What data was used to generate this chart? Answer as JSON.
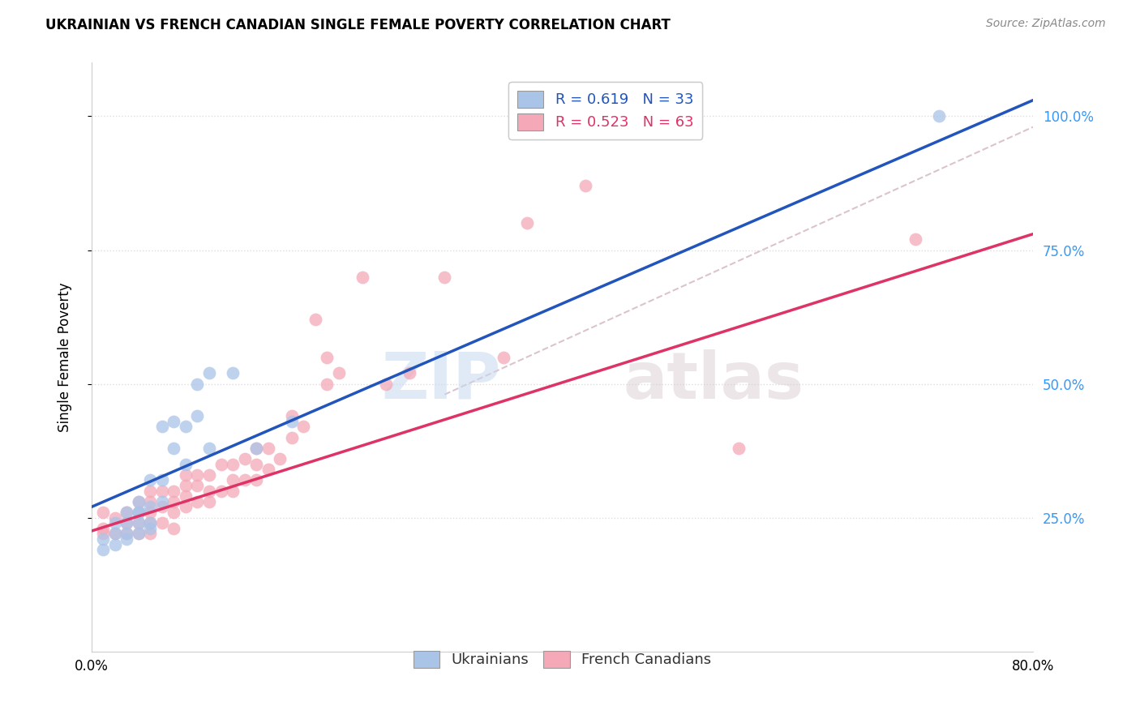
{
  "title": "UKRAINIAN VS FRENCH CANADIAN SINGLE FEMALE POVERTY CORRELATION CHART",
  "source": "Source: ZipAtlas.com",
  "ylabel": "Single Female Poverty",
  "xlim": [
    0.0,
    0.8
  ],
  "ylim": [
    0.0,
    1.1
  ],
  "xticks": [
    0.0,
    0.1,
    0.2,
    0.3,
    0.4,
    0.5,
    0.6,
    0.7,
    0.8
  ],
  "xticklabels": [
    "0.0%",
    "",
    "",
    "",
    "",
    "",
    "",
    "",
    "80.0%"
  ],
  "ytick_positions": [
    0.25,
    0.5,
    0.75,
    1.0
  ],
  "ytick_labels": [
    "25.0%",
    "50.0%",
    "75.0%",
    "100.0%"
  ],
  "watermark_zip": "ZIP",
  "watermark_atlas": "atlas",
  "blue_R": "0.619",
  "blue_N": "33",
  "pink_R": "0.523",
  "pink_N": "63",
  "blue_scatter_color": "#aac4e8",
  "pink_scatter_color": "#f4a8b8",
  "blue_line_color": "#2255bb",
  "pink_line_color": "#dd3366",
  "dash_line_color": "#ccaabb",
  "background_color": "#ffffff",
  "grid_color": "#dddddd",
  "legend_text_R_color": "#2255bb",
  "legend_text_N_color": "#dd3366",
  "ukr_x": [
    0.01,
    0.01,
    0.02,
    0.02,
    0.02,
    0.03,
    0.03,
    0.03,
    0.03,
    0.04,
    0.04,
    0.04,
    0.04,
    0.04,
    0.05,
    0.05,
    0.05,
    0.05,
    0.06,
    0.06,
    0.06,
    0.07,
    0.07,
    0.08,
    0.08,
    0.09,
    0.09,
    0.1,
    0.1,
    0.12,
    0.14,
    0.17,
    0.72
  ],
  "ukr_y": [
    0.19,
    0.21,
    0.2,
    0.22,
    0.24,
    0.21,
    0.22,
    0.24,
    0.26,
    0.22,
    0.24,
    0.26,
    0.26,
    0.28,
    0.23,
    0.24,
    0.27,
    0.32,
    0.28,
    0.32,
    0.42,
    0.38,
    0.43,
    0.35,
    0.42,
    0.44,
    0.5,
    0.38,
    0.52,
    0.52,
    0.38,
    0.43,
    1.0
  ],
  "fc_x": [
    0.01,
    0.01,
    0.01,
    0.02,
    0.02,
    0.03,
    0.03,
    0.03,
    0.04,
    0.04,
    0.04,
    0.04,
    0.05,
    0.05,
    0.05,
    0.05,
    0.05,
    0.06,
    0.06,
    0.06,
    0.07,
    0.07,
    0.07,
    0.07,
    0.08,
    0.08,
    0.08,
    0.08,
    0.09,
    0.09,
    0.09,
    0.1,
    0.1,
    0.1,
    0.11,
    0.11,
    0.12,
    0.12,
    0.12,
    0.13,
    0.13,
    0.14,
    0.14,
    0.14,
    0.15,
    0.15,
    0.16,
    0.17,
    0.17,
    0.18,
    0.19,
    0.2,
    0.2,
    0.21,
    0.23,
    0.25,
    0.27,
    0.3,
    0.35,
    0.37,
    0.42,
    0.55,
    0.7
  ],
  "fc_y": [
    0.22,
    0.23,
    0.26,
    0.22,
    0.25,
    0.22,
    0.24,
    0.26,
    0.22,
    0.24,
    0.26,
    0.28,
    0.22,
    0.24,
    0.26,
    0.28,
    0.3,
    0.24,
    0.27,
    0.3,
    0.23,
    0.26,
    0.28,
    0.3,
    0.27,
    0.29,
    0.31,
    0.33,
    0.28,
    0.31,
    0.33,
    0.28,
    0.3,
    0.33,
    0.3,
    0.35,
    0.3,
    0.32,
    0.35,
    0.32,
    0.36,
    0.32,
    0.35,
    0.38,
    0.34,
    0.38,
    0.36,
    0.4,
    0.44,
    0.42,
    0.62,
    0.5,
    0.55,
    0.52,
    0.7,
    0.5,
    0.52,
    0.7,
    0.55,
    0.8,
    0.87,
    0.38,
    0.77
  ],
  "blue_line_x": [
    0.0,
    0.8
  ],
  "blue_line_y": [
    0.27,
    1.03
  ],
  "pink_line_x": [
    0.0,
    0.8
  ],
  "pink_line_y": [
    0.225,
    0.78
  ],
  "dash_line_x": [
    0.3,
    0.8
  ],
  "dash_line_y": [
    0.48,
    0.98
  ]
}
